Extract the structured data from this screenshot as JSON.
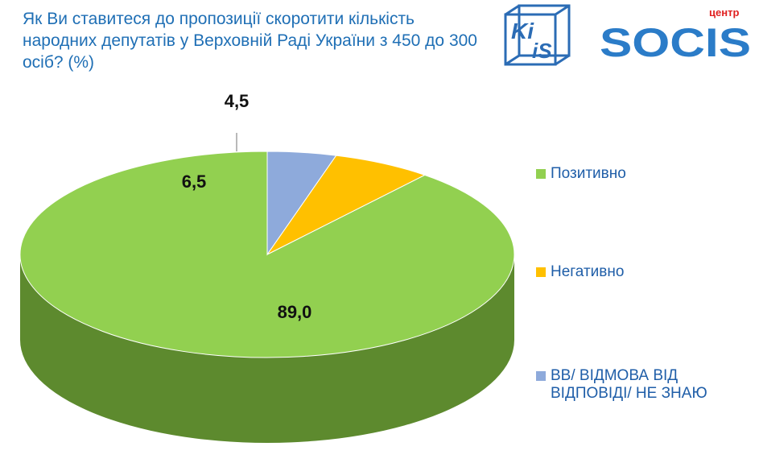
{
  "title": "Як Ви ставитеся до пропозиції скоротити кількість народних депутатів у Верховній Раді України з 450 до 300 осіб? (%)",
  "logos": {
    "kiis_top": "Ki",
    "kiis_bottom": "iS",
    "socis_small": "центр",
    "socis": "SOCIS"
  },
  "chart_data": {
    "type": "pie",
    "style": "3d",
    "series": [
      {
        "name": "Позитивно",
        "value": 89.0,
        "label": "89,0",
        "color": "#92d050",
        "side": "#5d8a2e"
      },
      {
        "name": "Негативно",
        "value": 6.5,
        "label": "6,5",
        "color": "#ffc000",
        "side": "#c08f00"
      },
      {
        "name": "ВВ/ ВІДМОВА ВІД ВІДПОВІДІ/ НЕ ЗНАЮ",
        "value": 4.5,
        "label": "4,5",
        "color": "#8eaadb",
        "side": "#5d75a3"
      }
    ],
    "legend_position": "right"
  }
}
